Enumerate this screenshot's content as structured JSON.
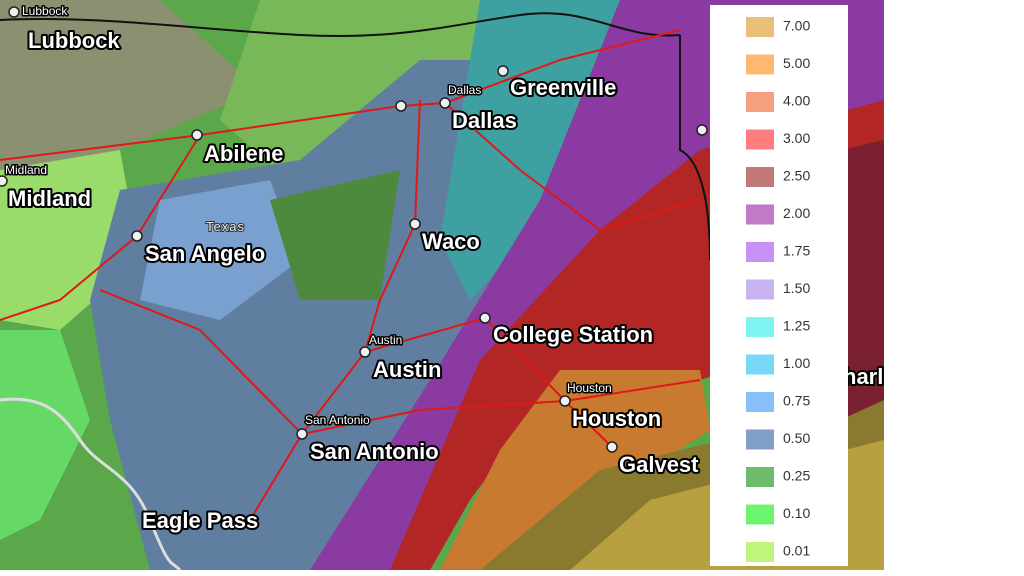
{
  "cities": [
    {
      "label": "Lubbock"
    },
    {
      "label": "Lubbock"
    },
    {
      "label": "Dallas"
    },
    {
      "label": "Dallas"
    },
    {
      "label": "Greenville"
    },
    {
      "label": "Abilene"
    },
    {
      "label": "Midland"
    },
    {
      "label": "Midland"
    },
    {
      "label": "Texas"
    },
    {
      "label": "San Angelo"
    },
    {
      "label": "Waco"
    },
    {
      "label": "Austin"
    },
    {
      "label": "Austin"
    },
    {
      "label": "College Station"
    },
    {
      "label": "Houston"
    },
    {
      "label": "Houston"
    },
    {
      "label": "San Antonio"
    },
    {
      "label": "San Antonio"
    },
    {
      "label": "Galvest"
    },
    {
      "label": "Eagle Pass"
    },
    {
      "label": "harl"
    }
  ],
  "legend": {
    "items": [
      {
        "label": "7.00",
        "color": "#e8c07a"
      },
      {
        "label": "5.00",
        "color": "#ffb870"
      },
      {
        "label": "4.00",
        "color": "#f4a07e"
      },
      {
        "label": "3.00",
        "color": "#ff7d7d"
      },
      {
        "label": "2.50",
        "color": "#c07878"
      },
      {
        "label": "2.00",
        "color": "#c07ac8"
      },
      {
        "label": "1.75",
        "color": "#c890f5"
      },
      {
        "label": "1.50",
        "color": "#c8b4f0"
      },
      {
        "label": "1.25",
        "color": "#7ef5f5"
      },
      {
        "label": "1.00",
        "color": "#78d8f8"
      },
      {
        "label": "0.75",
        "color": "#88c0f8"
      },
      {
        "label": "0.50",
        "color": "#7f9ec8"
      },
      {
        "label": "0.25",
        "color": "#6cbc6c"
      },
      {
        "label": "0.10",
        "color": "#6cf56c"
      },
      {
        "label": "0.01",
        "color": "#c0f57c"
      }
    ]
  }
}
